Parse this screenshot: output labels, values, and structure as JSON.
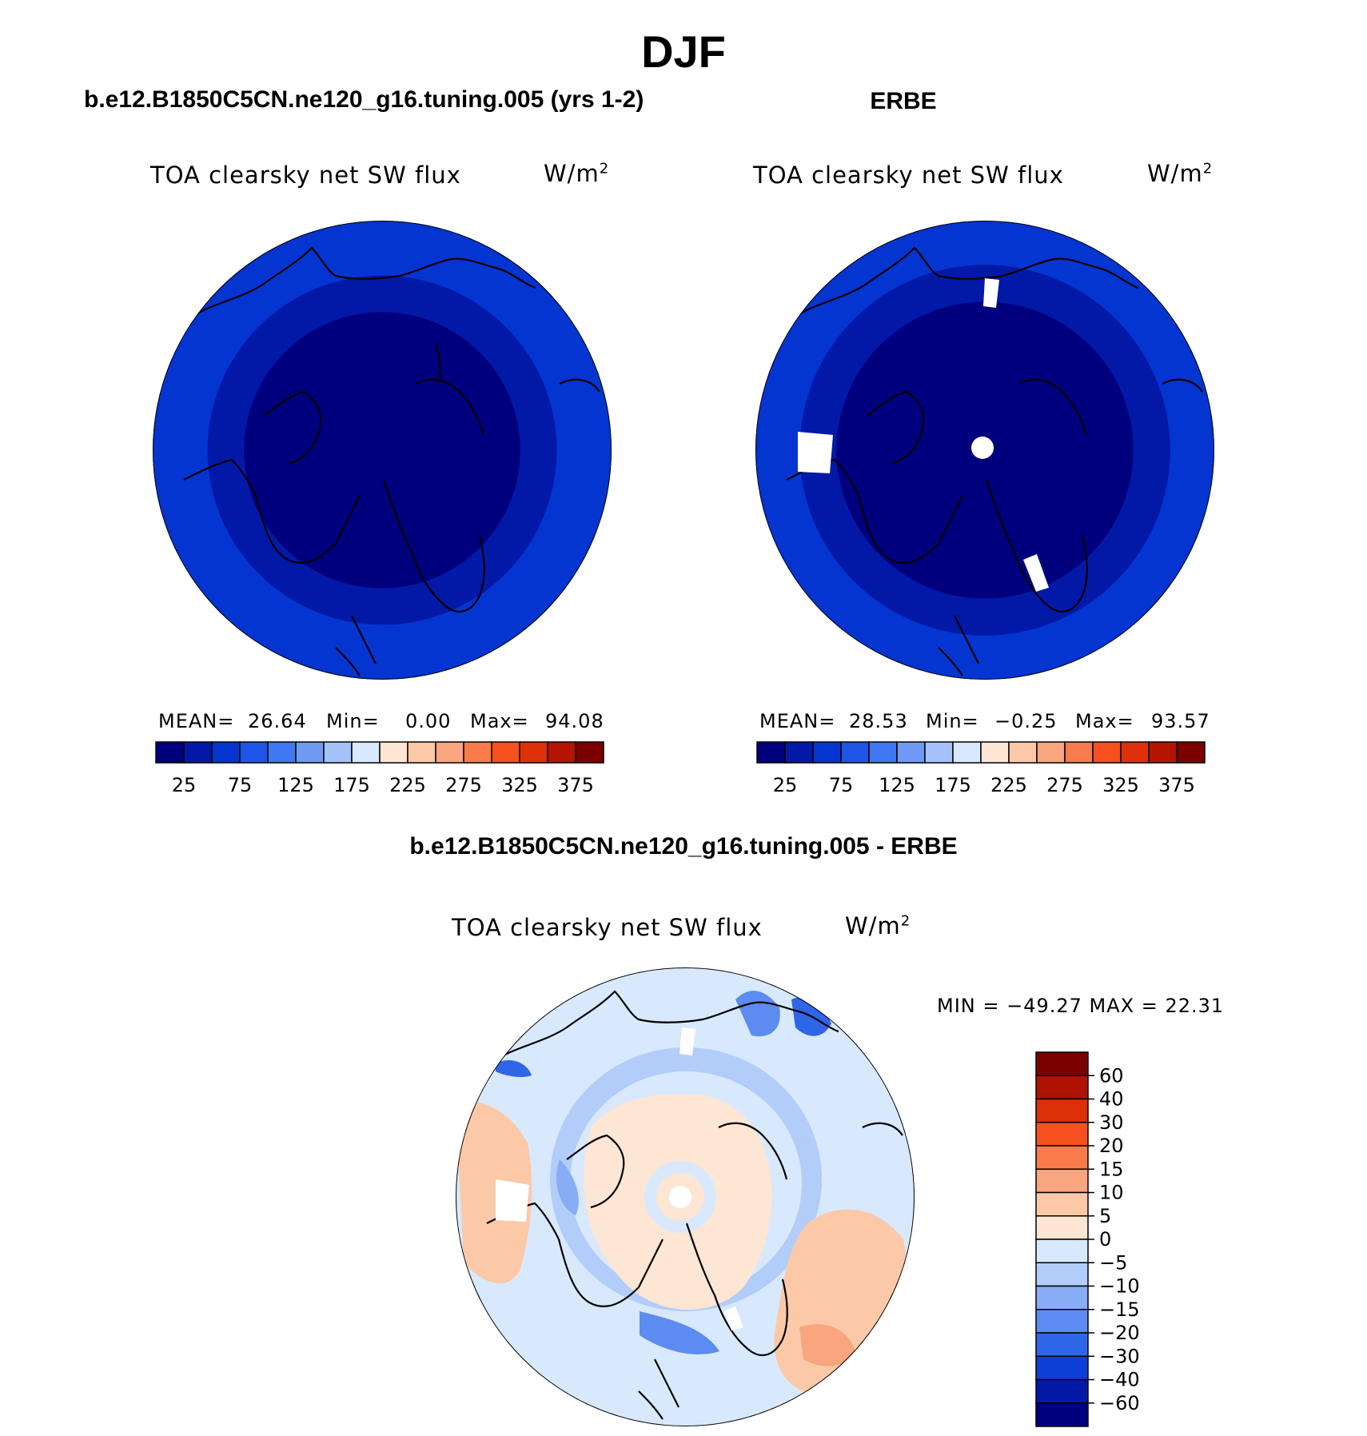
{
  "figure": {
    "title": "DJF",
    "left_panel_title": "b.e12.B1850C5CN.ne120_g16.tuning.005 (yrs 1-2)",
    "right_panel_title": "ERBE",
    "diff_panel_title": "b.e12.B1850C5CN.ne120_g16.tuning.005 - ERBE"
  },
  "panels": [
    {
      "variable": "TOA clearsky net SW flux",
      "units": "W/m",
      "units_sup": "2",
      "mean_label": "MEAN=",
      "mean": "26.64",
      "min_label": "Min=",
      "min": "0.00",
      "max_label": "Max=",
      "max": "94.08"
    },
    {
      "variable": "TOA clearsky net SW flux",
      "units": "W/m",
      "units_sup": "2",
      "mean_label": "MEAN=",
      "mean": "28.53",
      "min_label": "Min=",
      "min": "−0.25",
      "max_label": "Max=",
      "max": "93.57"
    },
    {
      "variable": "TOA clearsky net SW flux",
      "units": "W/m",
      "units_sup": "2",
      "minmax_text": "MIN = −49.27 MAX =  22.31"
    }
  ],
  "chart_data": [
    {
      "type": "heatmap",
      "projection": "polar-stereographic-north",
      "title": "b.e12.B1850C5CN.ne120_g16.tuning.005 (yrs 1-2)",
      "variable": "TOA clearsky net SW flux",
      "units": "W/m2",
      "mean": 26.64,
      "min": 0.0,
      "max": 94.08,
      "colorbar_labels": [
        "25",
        "75",
        "125",
        "175",
        "225",
        "275",
        "325",
        "375"
      ],
      "bands_low_to_high": [
        {
          "max_lat": 90,
          "value": 12
        },
        {
          "max_lat": 62,
          "value": 37
        },
        {
          "max_lat": 55,
          "value": 62
        },
        {
          "max_lat": 45,
          "value": 88
        }
      ]
    },
    {
      "type": "heatmap",
      "projection": "polar-stereographic-north",
      "title": "ERBE",
      "variable": "TOA clearsky net SW flux",
      "units": "W/m2",
      "mean": 28.53,
      "min": -0.25,
      "max": 93.57,
      "colorbar_labels": [
        "25",
        "75",
        "125",
        "175",
        "225",
        "275",
        "325",
        "375"
      ],
      "bands_low_to_high": [
        {
          "max_lat": 90,
          "value": 12
        },
        {
          "max_lat": 60,
          "value": 37
        },
        {
          "max_lat": 53,
          "value": 62
        },
        {
          "max_lat": 45,
          "value": 88
        }
      ]
    },
    {
      "type": "heatmap",
      "projection": "polar-stereographic-north",
      "title": "b.e12.B1850C5CN.ne120_g16.tuning.005 - ERBE",
      "variable": "TOA clearsky net SW flux",
      "units": "W/m2",
      "min": -49.27,
      "max": 22.31,
      "colorbar_labels": [
        "60",
        "40",
        "30",
        "20",
        "15",
        "10",
        "5",
        "0",
        "−5",
        "−10",
        "−15",
        "−20",
        "−30",
        "−40",
        "−60"
      ]
    }
  ],
  "colors": {
    "abs_scale": [
      "#00007e",
      "#0219a8",
      "#0535d0",
      "#1f55e8",
      "#3f78f2",
      "#6e9af4",
      "#a5c3fa",
      "#d8e9fd",
      "#fde6d4",
      "#fcc9a8",
      "#f9a57e",
      "#f97b4c",
      "#f6501e",
      "#e0300a",
      "#b41400",
      "#7d0000"
    ],
    "diff_scale": [
      "#7d0000",
      "#ae1300",
      "#dc3008",
      "#f6501e",
      "#f97b4c",
      "#f9a57e",
      "#fcc9a8",
      "#fde6d4",
      "#d8e9fd",
      "#b2cdfa",
      "#88acf5",
      "#5c8cf0",
      "#2f66e8",
      "#0d3ed6",
      "#0219a8",
      "#00007e"
    ]
  }
}
